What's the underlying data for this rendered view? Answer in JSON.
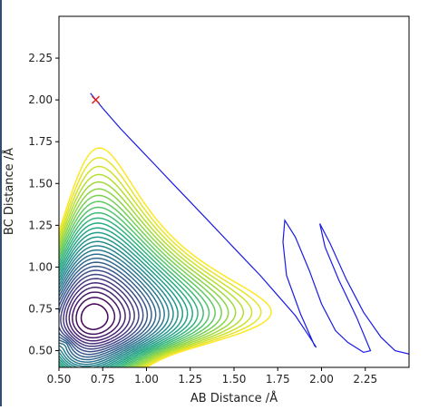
{
  "chart_data": {
    "type": "contour",
    "title": "",
    "xlabel": "AB Distance /Å",
    "ylabel": "BC Distance /Å",
    "xlim": [
      0.5,
      2.5
    ],
    "ylim": [
      0.4,
      2.5
    ],
    "x_ticks": [
      "0.50",
      "0.75",
      "1.00",
      "1.25",
      "1.50",
      "1.75",
      "2.00",
      "2.25"
    ],
    "x_tick_values": [
      0.5,
      0.75,
      1.0,
      1.25,
      1.5,
      1.75,
      2.0,
      2.25
    ],
    "y_ticks": [
      "0.50",
      "0.75",
      "1.00",
      "1.25",
      "1.50",
      "1.75",
      "2.00",
      "2.25"
    ],
    "y_tick_values": [
      0.5,
      0.75,
      1.0,
      1.25,
      1.5,
      1.75,
      2.0,
      2.25
    ],
    "grid": false,
    "colormap": "viridis",
    "trajectory": {
      "color": "#1a1ae6",
      "start_marker": "x",
      "start_marker_color": "#e02020",
      "start": [
        0.71,
        2.0
      ],
      "points": [
        [
          0.68,
          2.04
        ],
        [
          0.75,
          1.95
        ],
        [
          0.85,
          1.83
        ],
        [
          0.95,
          1.72
        ],
        [
          1.05,
          1.61
        ],
        [
          1.15,
          1.5
        ],
        [
          1.25,
          1.39
        ],
        [
          1.35,
          1.28
        ],
        [
          1.45,
          1.17
        ],
        [
          1.55,
          1.06
        ],
        [
          1.65,
          0.95
        ],
        [
          1.75,
          0.83
        ],
        [
          1.85,
          0.71
        ],
        [
          1.92,
          0.6
        ],
        [
          1.97,
          0.52
        ],
        [
          1.96,
          0.53
        ],
        [
          1.88,
          0.72
        ],
        [
          1.8,
          0.95
        ],
        [
          1.78,
          1.15
        ],
        [
          1.79,
          1.28
        ],
        [
          1.85,
          1.18
        ],
        [
          1.93,
          0.98
        ],
        [
          2.0,
          0.78
        ],
        [
          2.08,
          0.62
        ],
        [
          2.15,
          0.55
        ],
        [
          2.24,
          0.49
        ],
        [
          2.28,
          0.5
        ],
        [
          2.2,
          0.7
        ],
        [
          2.1,
          0.92
        ],
        [
          2.02,
          1.12
        ],
        [
          1.99,
          1.26
        ],
        [
          2.05,
          1.14
        ],
        [
          2.14,
          0.93
        ],
        [
          2.24,
          0.73
        ],
        [
          2.34,
          0.58
        ],
        [
          2.42,
          0.5
        ],
        [
          2.5,
          0.48
        ]
      ]
    }
  }
}
